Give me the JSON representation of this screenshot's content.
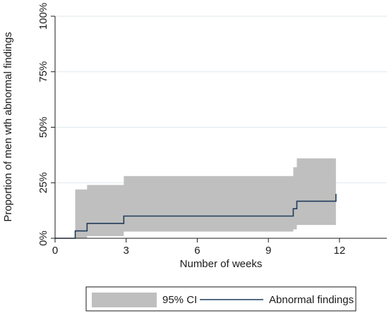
{
  "chart_data": {
    "type": "step",
    "xlabel": "Number of weeks",
    "ylabel": "Proportion of men wth abnormal findings",
    "xlim": [
      0,
      14
    ],
    "ylim": [
      0,
      1
    ],
    "x_ticks": [
      0,
      3,
      6,
      9,
      12
    ],
    "x_tick_labels": [
      "0",
      "3",
      "6",
      "9",
      "12"
    ],
    "y_ticks": [
      0,
      0.25,
      0.5,
      0.75,
      1.0
    ],
    "y_tick_labels": [
      "0%",
      "25%",
      "50%",
      "75%",
      "100%"
    ],
    "grid": "horizontal",
    "legend_position": "bottom",
    "series": [
      {
        "name": "95% CI",
        "kind": "band",
        "color": "#bfbfbf",
        "x": [
          0.85,
          1.35,
          2.9,
          10.05,
          10.2,
          11.85
        ],
        "lower": [
          0.0,
          0.01,
          0.03,
          0.04,
          0.06,
          0.06
        ],
        "upper": [
          0.22,
          0.24,
          0.28,
          0.32,
          0.36,
          0.36
        ]
      },
      {
        "name": "Abnormal findings",
        "kind": "step",
        "color": "#1f3b5a",
        "x": [
          0.0,
          0.85,
          1.35,
          2.9,
          10.05,
          10.2,
          11.85,
          11.85
        ],
        "y": [
          0.0,
          0.033,
          0.067,
          0.1,
          0.133,
          0.167,
          0.167,
          0.2
        ]
      }
    ]
  }
}
